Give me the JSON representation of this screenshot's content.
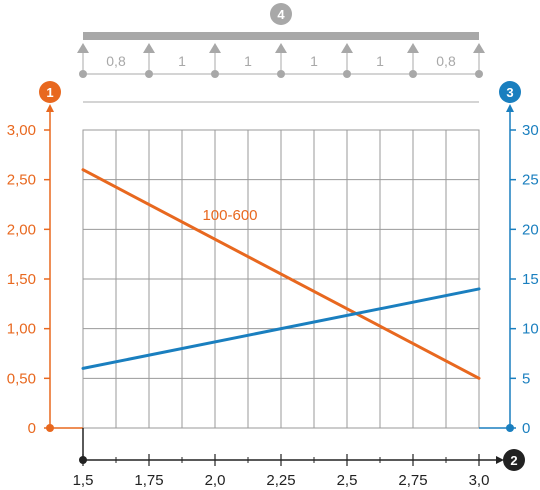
{
  "chart_data": {
    "type": "line",
    "x": [
      1.5,
      3.0
    ],
    "xlim": [
      1.5,
      3.0
    ],
    "x_ticks": [
      "1,5",
      "1,75",
      "2,0",
      "2,25",
      "2,5",
      "2,75",
      "3,0"
    ],
    "ylim_left": [
      0,
      3.0
    ],
    "left_ticks": [
      "0",
      "0,50",
      "1,00",
      "1,50",
      "2,00",
      "2,50",
      "3,00"
    ],
    "ylim_right": [
      0,
      30
    ],
    "right_ticks": [
      "0",
      "5",
      "10",
      "15",
      "20",
      "25",
      "30"
    ],
    "grid": true,
    "series": [
      {
        "name": "100-600",
        "axis": "left",
        "x": [
          1.5,
          3.0
        ],
        "values": [
          2.6,
          0.5
        ],
        "color": "#e8681f"
      },
      {
        "name": "",
        "axis": "right",
        "x": [
          1.5,
          3.0
        ],
        "values": [
          6,
          14
        ],
        "color": "#1a7fbf"
      }
    ],
    "axis_markers": {
      "left": "1",
      "right": "3",
      "bottom": "2",
      "top": "4"
    },
    "span_labels": [
      "0,8",
      "1",
      "1",
      "1",
      "1",
      "0,8"
    ]
  },
  "colors": {
    "orange": "#e8681f",
    "blue": "#1a7fbf",
    "grey": "#a8a8a8",
    "grid": "#9a9a9a",
    "dark": "#222222"
  }
}
